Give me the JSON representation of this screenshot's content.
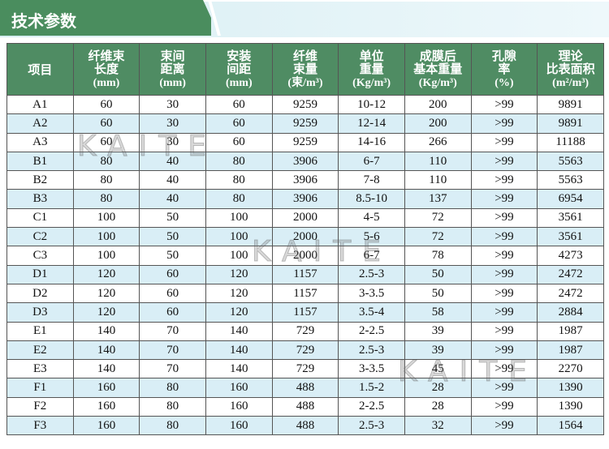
{
  "header": {
    "title": "技术参数"
  },
  "table": {
    "columns": [
      [
        "项目"
      ],
      [
        "纤维束",
        "长度",
        "(mm)"
      ],
      [
        "束间",
        "距离",
        "(mm)"
      ],
      [
        "安装",
        "间距",
        "(mm)"
      ],
      [
        "纤维",
        "束量",
        "(束/m³)"
      ],
      [
        "单位",
        "重量",
        "(Kg/m³)"
      ],
      [
        "成膜后",
        "基本重量",
        "(Kg/m³)"
      ],
      [
        "孔隙",
        "率",
        "(%)"
      ],
      [
        "理论",
        "比表面积",
        "(m²/m³)"
      ]
    ],
    "rows": [
      [
        "A1",
        "60",
        "30",
        "60",
        "9259",
        "10-12",
        "200",
        ">99",
        "9891"
      ],
      [
        "A2",
        "60",
        "30",
        "60",
        "9259",
        "12-14",
        "200",
        ">99",
        "9891"
      ],
      [
        "A3",
        "60",
        "30",
        "60",
        "9259",
        "14-16",
        "266",
        ">99",
        "11188"
      ],
      [
        "B1",
        "80",
        "40",
        "80",
        "3906",
        "6-7",
        "110",
        ">99",
        "5563"
      ],
      [
        "B2",
        "80",
        "40",
        "80",
        "3906",
        "7-8",
        "110",
        ">99",
        "5563"
      ],
      [
        "B3",
        "80",
        "40",
        "80",
        "3906",
        "8.5-10",
        "137",
        ">99",
        "6954"
      ],
      [
        "C1",
        "100",
        "50",
        "100",
        "2000",
        "4-5",
        "72",
        ">99",
        "3561"
      ],
      [
        "C2",
        "100",
        "50",
        "100",
        "2000",
        "5-6",
        "72",
        ">99",
        "3561"
      ],
      [
        "C3",
        "100",
        "50",
        "100",
        "2000",
        "6-7",
        "78",
        ">99",
        "4273"
      ],
      [
        "D1",
        "120",
        "60",
        "120",
        "1157",
        "2.5-3",
        "50",
        ">99",
        "2472"
      ],
      [
        "D2",
        "120",
        "60",
        "120",
        "1157",
        "3-3.5",
        "50",
        ">99",
        "2472"
      ],
      [
        "D3",
        "120",
        "60",
        "120",
        "1157",
        "3.5-4",
        "58",
        ">99",
        "2884"
      ],
      [
        "E1",
        "140",
        "70",
        "140",
        "729",
        "2-2.5",
        "39",
        ">99",
        "1987"
      ],
      [
        "E2",
        "140",
        "70",
        "140",
        "729",
        "2.5-3",
        "39",
        ">99",
        "1987"
      ],
      [
        "E3",
        "140",
        "70",
        "140",
        "729",
        "3-3.5",
        "45",
        ">99",
        "2270"
      ],
      [
        "F1",
        "160",
        "80",
        "160",
        "488",
        "1.5-2",
        "28",
        ">99",
        "1390"
      ],
      [
        "F2",
        "160",
        "80",
        "160",
        "488",
        "2-2.5",
        "28",
        ">99",
        "1390"
      ],
      [
        "F3",
        "160",
        "80",
        "160",
        "488",
        "2.5-3",
        "32",
        ">99",
        "1564"
      ]
    ]
  },
  "watermarks": [
    "KAITE",
    "KAITE",
    "KAITE"
  ]
}
